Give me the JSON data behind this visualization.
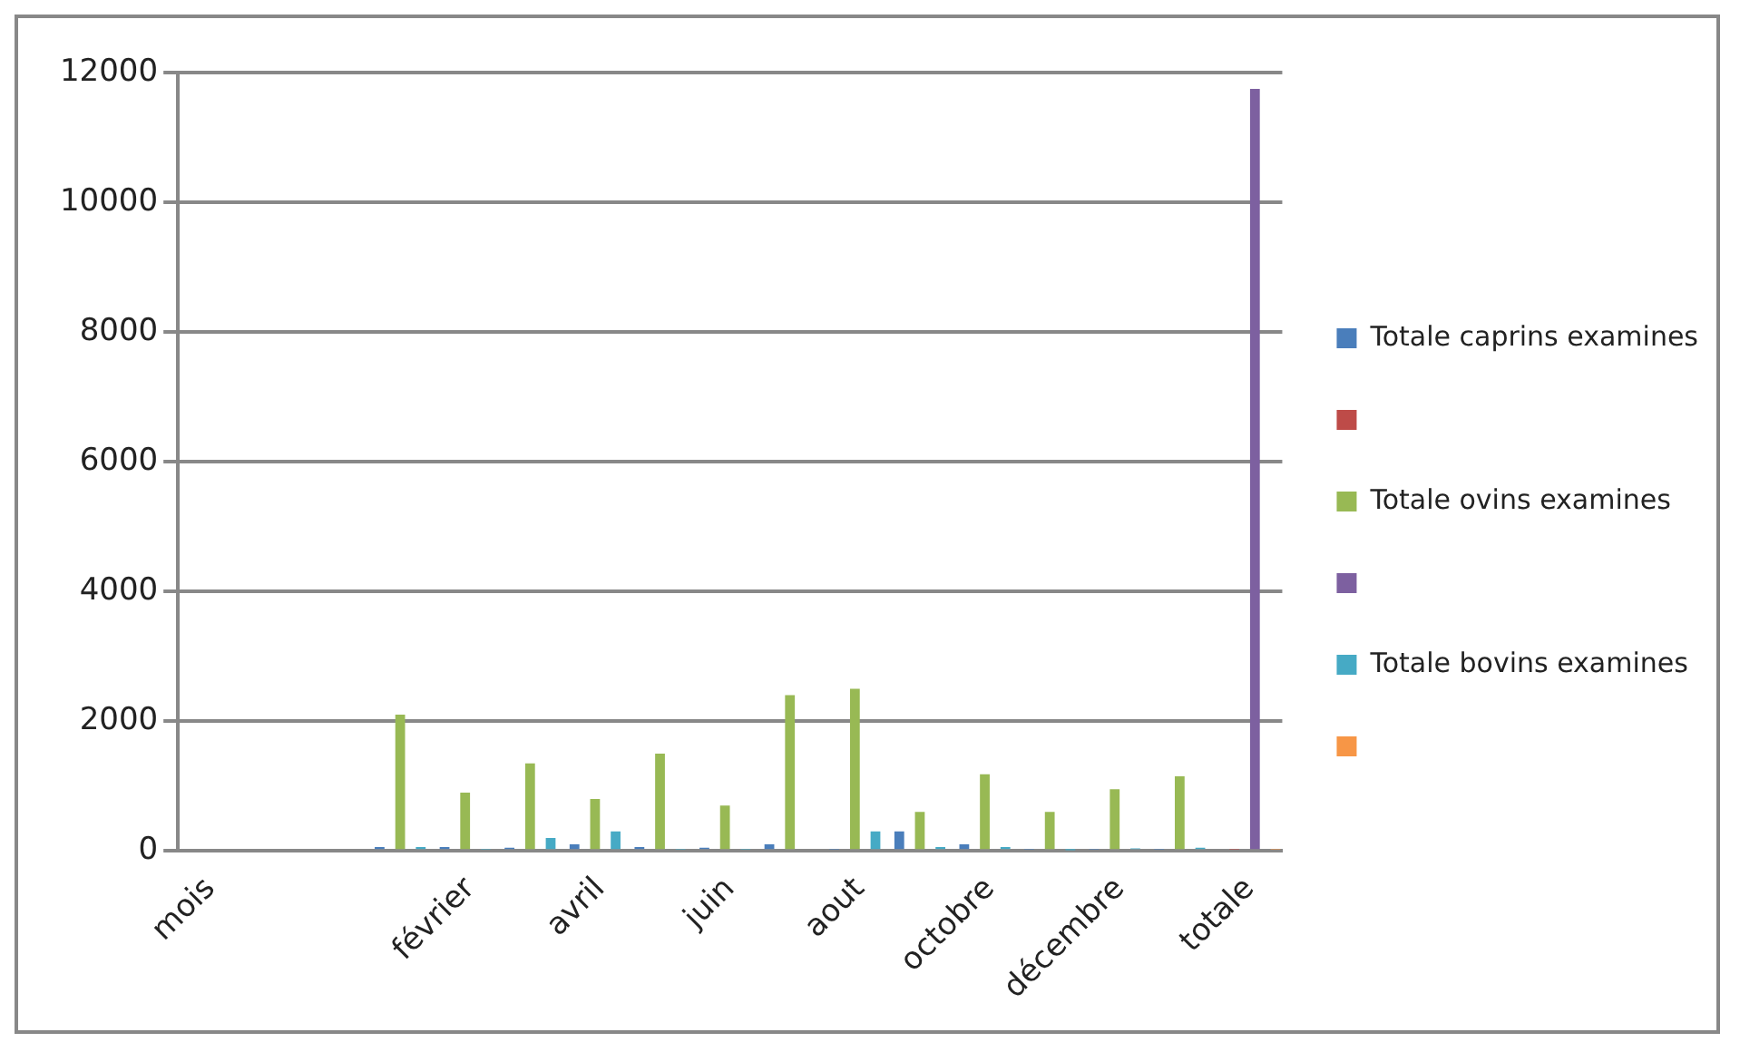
{
  "chart_data": {
    "type": "bar",
    "categories": [
      "mois",
      null,
      null,
      null,
      "février",
      null,
      "avril",
      null,
      "juin",
      null,
      "aout",
      null,
      "octobre",
      null,
      "décembre",
      null,
      "totale"
    ],
    "series": [
      {
        "name": "Totale caprins examines",
        "color": "#4a7ebb",
        "values": [
          null,
          null,
          null,
          60,
          60,
          50,
          100,
          60,
          50,
          100,
          20,
          300,
          100,
          20,
          20,
          20,
          null
        ]
      },
      {
        "color": "#be4b48",
        "values": [
          null,
          null,
          null,
          null,
          null,
          null,
          null,
          null,
          null,
          null,
          null,
          null,
          null,
          null,
          null,
          null,
          20
        ]
      },
      {
        "name": "Totale ovins examines",
        "color": "#98b954",
        "values": [
          null,
          null,
          null,
          2100,
          900,
          1350,
          800,
          1500,
          700,
          2400,
          2500,
          600,
          1180,
          600,
          950,
          1150,
          null
        ]
      },
      {
        "color": "#7d60a0",
        "values": [
          null,
          null,
          null,
          null,
          null,
          null,
          null,
          null,
          null,
          null,
          null,
          null,
          null,
          null,
          null,
          null,
          11750
        ]
      },
      {
        "name": "Totale bovins examines",
        "color": "#46aac5",
        "values": [
          null,
          null,
          null,
          60,
          20,
          200,
          300,
          20,
          20,
          null,
          300,
          60,
          60,
          10,
          40,
          50,
          null
        ]
      },
      {
        "color": "#f79646",
        "values": [
          null,
          null,
          null,
          null,
          null,
          null,
          null,
          null,
          null,
          null,
          null,
          null,
          null,
          null,
          null,
          null,
          20
        ]
      }
    ],
    "ylim": [
      0,
      12000
    ],
    "yticks": [
      0,
      2000,
      4000,
      6000,
      8000,
      10000,
      12000
    ],
    "grid": "y",
    "legend": "right"
  }
}
